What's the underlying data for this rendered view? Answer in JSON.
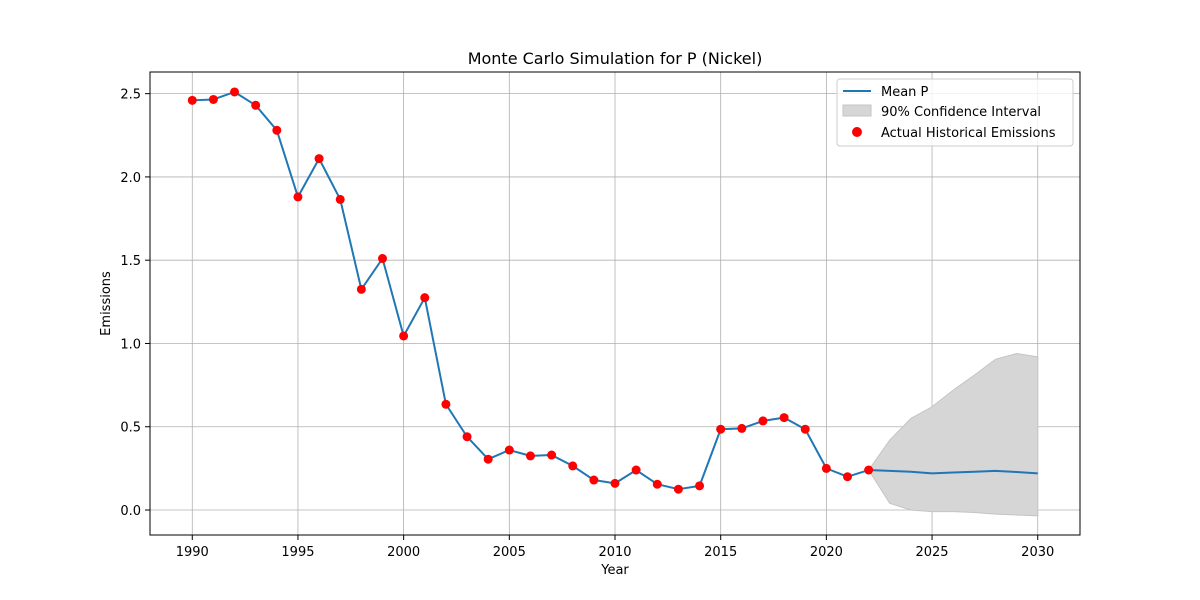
{
  "chart_data": {
    "type": "line",
    "title": "Monte Carlo Simulation for P (Nickel)",
    "xlabel": "Year",
    "ylabel": "Emissions",
    "xlim": [
      1988,
      2032
    ],
    "ylim": [
      -0.15,
      2.63
    ],
    "xticks": [
      1990,
      1995,
      2000,
      2005,
      2010,
      2015,
      2020,
      2025,
      2030
    ],
    "yticks": [
      0.0,
      0.5,
      1.0,
      1.5,
      2.0,
      2.5
    ],
    "grid": true,
    "legend_position": "top-right",
    "colors": {
      "mean": "#1f77b4",
      "band": "#d6d6d6",
      "band_edge": "#c4c4c4",
      "points": "#ff0000"
    },
    "series": [
      {
        "name": "Mean P",
        "kind": "line",
        "x": [
          1990,
          1991,
          1992,
          1993,
          1994,
          1995,
          1996,
          1997,
          1998,
          1999,
          2000,
          2001,
          2002,
          2003,
          2004,
          2005,
          2006,
          2007,
          2008,
          2009,
          2010,
          2011,
          2012,
          2013,
          2014,
          2015,
          2016,
          2017,
          2018,
          2019,
          2020,
          2021,
          2022,
          2023,
          2024,
          2025,
          2026,
          2027,
          2028,
          2029,
          2030
        ],
        "y": [
          2.46,
          2.465,
          2.51,
          2.43,
          2.28,
          1.88,
          2.11,
          1.865,
          1.325,
          1.51,
          1.045,
          1.275,
          0.635,
          0.44,
          0.305,
          0.36,
          0.325,
          0.33,
          0.265,
          0.18,
          0.16,
          0.24,
          0.155,
          0.125,
          0.145,
          0.485,
          0.49,
          0.535,
          0.555,
          0.485,
          0.25,
          0.2,
          0.24,
          0.235,
          0.23,
          0.22,
          0.225,
          0.23,
          0.235,
          0.228,
          0.22
        ]
      },
      {
        "name": "90% Confidence Interval",
        "kind": "band",
        "x": [
          2022,
          2023,
          2024,
          2025,
          2026,
          2027,
          2028,
          2029,
          2030
        ],
        "lower": [
          0.24,
          0.04,
          0.0,
          -0.01,
          -0.01,
          -0.015,
          -0.025,
          -0.03,
          -0.035
        ],
        "upper": [
          0.24,
          0.42,
          0.55,
          0.62,
          0.72,
          0.81,
          0.905,
          0.94,
          0.92
        ]
      },
      {
        "name": "Actual Historical Emissions",
        "kind": "scatter",
        "x": [
          1990,
          1991,
          1992,
          1993,
          1994,
          1995,
          1996,
          1997,
          1998,
          1999,
          2000,
          2001,
          2002,
          2003,
          2004,
          2005,
          2006,
          2007,
          2008,
          2009,
          2010,
          2011,
          2012,
          2013,
          2014,
          2015,
          2016,
          2017,
          2018,
          2019,
          2020,
          2021,
          2022
        ],
        "y": [
          2.46,
          2.465,
          2.51,
          2.43,
          2.28,
          1.88,
          2.11,
          1.865,
          1.325,
          1.51,
          1.045,
          1.275,
          0.635,
          0.44,
          0.305,
          0.36,
          0.325,
          0.33,
          0.265,
          0.18,
          0.16,
          0.24,
          0.155,
          0.125,
          0.145,
          0.485,
          0.49,
          0.535,
          0.555,
          0.485,
          0.25,
          0.2,
          0.24
        ]
      }
    ]
  }
}
